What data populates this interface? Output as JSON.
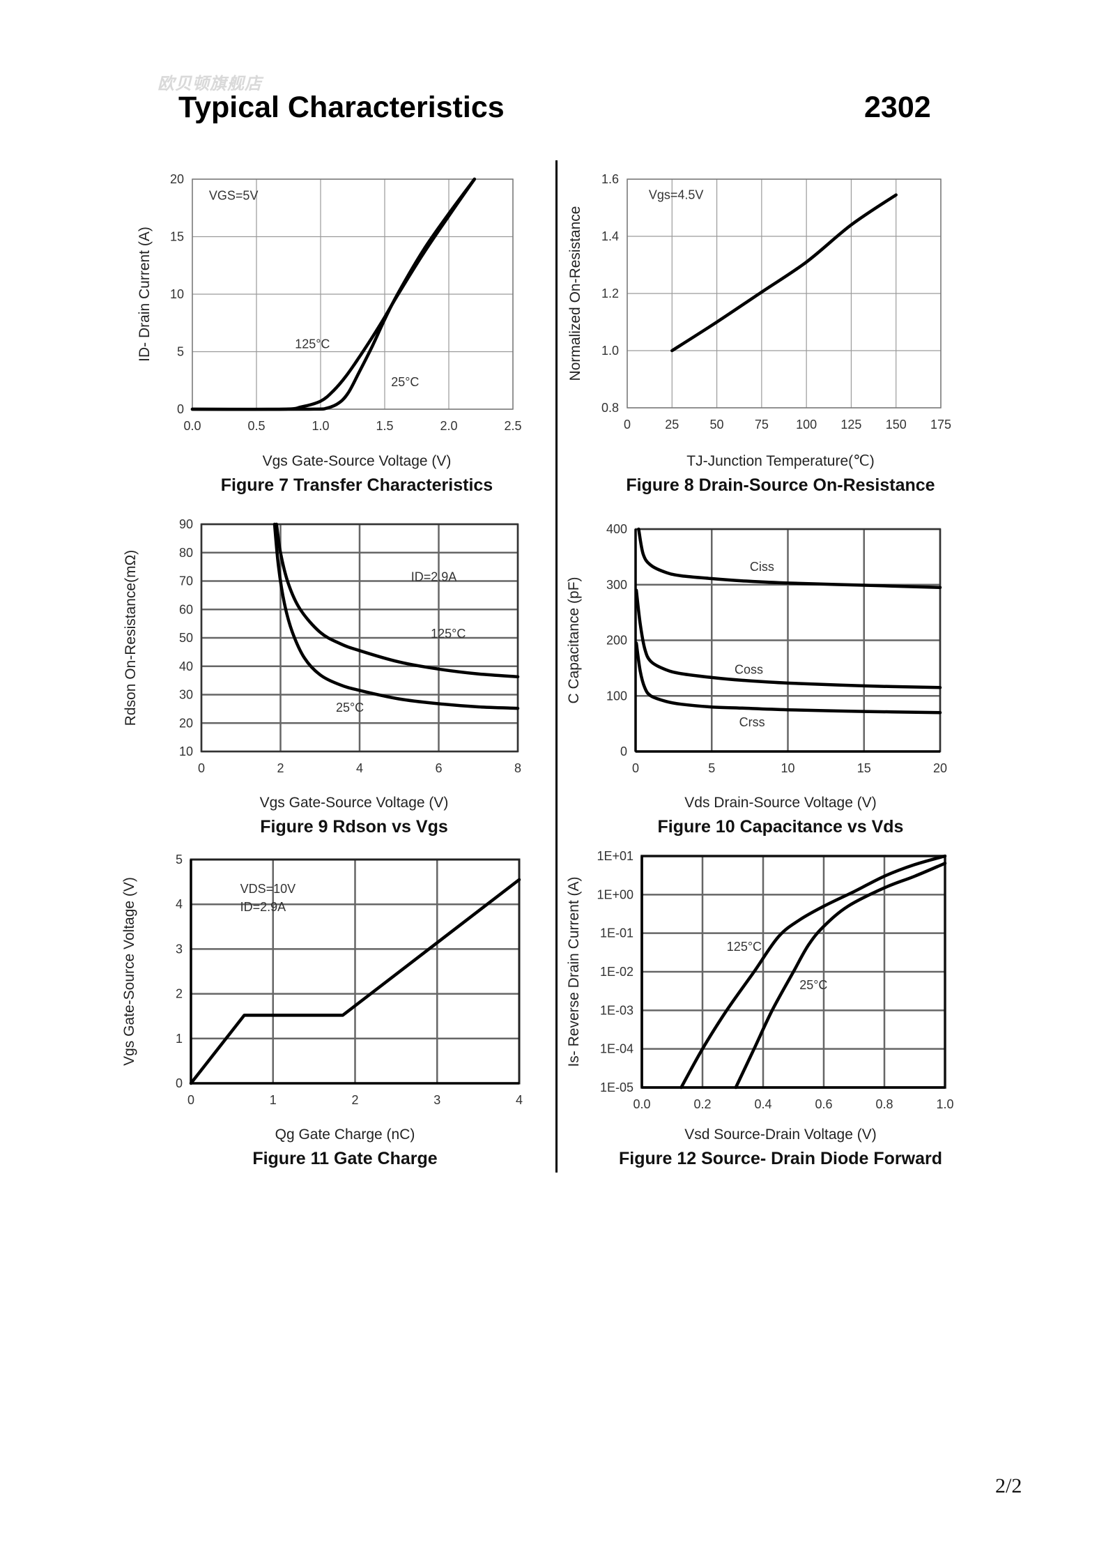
{
  "header": {
    "watermark": "欧贝顿旗舰店",
    "title": "Typical Characteristics",
    "part_number": "2302"
  },
  "footer": {
    "page_number": "2/2"
  },
  "chart_data": [
    {
      "id": "fig7",
      "type": "line",
      "title": "Figure 7 Transfer Characteristics",
      "xlabel": "Vgs Gate-Source Voltage (V)",
      "ylabel": "ID- Drain Current (A)",
      "xlim": [
        0,
        2.5
      ],
      "ylim": [
        0,
        20
      ],
      "xticks": [
        0,
        0.5,
        1.0,
        1.5,
        2.0,
        2.5
      ],
      "xtick_labels": [
        "0.0",
        "0.5",
        "1.0",
        "1.5",
        "2.0",
        "2.5"
      ],
      "yticks": [
        0,
        5,
        10,
        15,
        20
      ],
      "ytick_labels": [
        "0",
        "5",
        "10",
        "15",
        "20"
      ],
      "grid": true,
      "annotations": [
        {
          "text": "VGS=5V",
          "x": 0.13,
          "y": 18.2
        },
        {
          "text": "125°C",
          "x": 0.8,
          "y": 5.3
        },
        {
          "text": "25°C",
          "x": 1.55,
          "y": 2.0
        }
      ],
      "series": [
        {
          "name": "125°C",
          "x": [
            0,
            0.7,
            0.85,
            1.0,
            1.1,
            1.2,
            1.3,
            1.4,
            1.5,
            1.6,
            1.8,
            2.0,
            2.2
          ],
          "y": [
            0,
            0,
            0.2,
            0.7,
            1.6,
            2.9,
            4.5,
            6.2,
            8.0,
            9.9,
            13.5,
            16.8,
            20
          ]
        },
        {
          "name": "25°C",
          "x": [
            0,
            0.9,
            1.05,
            1.15,
            1.22,
            1.3,
            1.4,
            1.5,
            1.6,
            1.8,
            2.0,
            2.2
          ],
          "y": [
            0,
            0,
            0.1,
            0.6,
            1.5,
            3.2,
            5.4,
            7.8,
            10.0,
            13.8,
            17.0,
            20
          ]
        }
      ]
    },
    {
      "id": "fig8",
      "type": "line",
      "title": "Figure 8 Drain-Source On-Resistance",
      "xlabel": "TJ-Junction Temperature(℃)",
      "ylabel": "Normalized On-Resistance",
      "xlim": [
        0,
        175
      ],
      "ylim": [
        0.8,
        1.6
      ],
      "xticks": [
        0,
        25,
        50,
        75,
        100,
        125,
        150,
        175
      ],
      "xtick_labels": [
        "0",
        "25",
        "50",
        "75",
        "100",
        "125",
        "150",
        "175"
      ],
      "yticks": [
        0.8,
        1.0,
        1.2,
        1.4,
        1.6
      ],
      "ytick_labels": [
        "0.8",
        "1.0",
        "1.2",
        "1.4",
        "1.6"
      ],
      "grid": true,
      "annotations": [
        {
          "text": "Vgs=4.5V",
          "x": 12,
          "y": 1.53
        }
      ],
      "series": [
        {
          "name": "Vgs=4.5V",
          "x": [
            25,
            50,
            75,
            100,
            125,
            150
          ],
          "y": [
            1.0,
            1.1,
            1.205,
            1.31,
            1.44,
            1.545
          ]
        }
      ]
    },
    {
      "id": "fig9",
      "type": "line",
      "title": "Figure 9 Rdson vs Vgs",
      "xlabel": "Vgs Gate-Source Voltage (V)",
      "ylabel": "Rdson On-Resistance(mΩ)",
      "xlim": [
        0,
        8
      ],
      "ylim": [
        10,
        90
      ],
      "xticks": [
        0,
        2,
        4,
        6,
        8
      ],
      "xtick_labels": [
        "0",
        "2",
        "4",
        "6",
        "8"
      ],
      "yticks": [
        10,
        20,
        30,
        40,
        50,
        60,
        70,
        80,
        90
      ],
      "ytick_labels": [
        "10",
        "20",
        "30",
        "40",
        "50",
        "60",
        "70",
        "80",
        "90"
      ],
      "grid": true,
      "annotations": [
        {
          "text": "ID=2.9A",
          "x": 5.3,
          "y": 70
        },
        {
          "text": "125°C",
          "x": 5.8,
          "y": 50
        },
        {
          "text": "25°C",
          "x": 3.4,
          "y": 24
        }
      ],
      "series": [
        {
          "name": "125°C",
          "x": [
            1.9,
            2.0,
            2.2,
            2.5,
            3.0,
            3.5,
            4.0,
            5.0,
            6.0,
            7.0,
            8.0
          ],
          "y": [
            90,
            80,
            69,
            60,
            52,
            48,
            45.5,
            41.5,
            39,
            37.3,
            36.3
          ]
        },
        {
          "name": "25°C",
          "x": [
            1.85,
            1.95,
            2.1,
            2.3,
            2.6,
            3.0,
            3.5,
            4.0,
            5.0,
            6.0,
            7.0,
            8.0
          ],
          "y": [
            90,
            75,
            62,
            52,
            43,
            37,
            33.5,
            31.5,
            28.5,
            26.8,
            25.7,
            25.2
          ]
        }
      ]
    },
    {
      "id": "fig10",
      "type": "line",
      "title": "Figure 10 Capacitance vs Vds",
      "xlabel": "Vds Drain-Source Voltage (V)",
      "ylabel": "C Capacitance (pF)",
      "xlim": [
        0,
        20
      ],
      "ylim": [
        0,
        400
      ],
      "xticks": [
        0,
        5,
        10,
        15,
        20
      ],
      "xtick_labels": [
        "0",
        "5",
        "10",
        "15",
        "20"
      ],
      "yticks": [
        0,
        100,
        200,
        300,
        400
      ],
      "ytick_labels": [
        "0",
        "100",
        "200",
        "300",
        "400"
      ],
      "grid": true,
      "annotations": [
        {
          "text": "Ciss",
          "x": 7.5,
          "y": 325
        },
        {
          "text": "Coss",
          "x": 6.5,
          "y": 140
        },
        {
          "text": "Crss",
          "x": 6.8,
          "y": 45
        }
      ],
      "series": [
        {
          "name": "Ciss",
          "x": [
            0.2,
            0.5,
            1,
            2,
            3,
            5,
            7,
            10,
            15,
            20
          ],
          "y": [
            400,
            355,
            335,
            322,
            316,
            311,
            307,
            303,
            299,
            295
          ]
        },
        {
          "name": "Coss",
          "x": [
            0.05,
            0.3,
            0.6,
            1,
            2,
            3,
            5,
            7,
            10,
            15,
            20
          ],
          "y": [
            290,
            230,
            185,
            162,
            147,
            140,
            133,
            128,
            123,
            118,
            115
          ]
        },
        {
          "name": "Crss",
          "x": [
            0.05,
            0.3,
            0.6,
            1,
            2,
            3,
            5,
            7,
            10,
            15,
            20
          ],
          "y": [
            195,
            145,
            115,
            100,
            90,
            85,
            80,
            78,
            75,
            72,
            70
          ]
        }
      ]
    },
    {
      "id": "fig11",
      "type": "line",
      "title": "Figure 11 Gate Charge",
      "xlabel": "Qg Gate Charge (nC)",
      "ylabel": "Vgs Gate-Source Voltage (V)",
      "xlim": [
        0,
        4
      ],
      "ylim": [
        0,
        5
      ],
      "xticks": [
        0,
        1,
        2,
        3,
        4
      ],
      "xtick_labels": [
        "0",
        "1",
        "2",
        "3",
        "4"
      ],
      "yticks": [
        0,
        1,
        2,
        3,
        4,
        5
      ],
      "ytick_labels": [
        "0",
        "1",
        "2",
        "3",
        "4",
        "5"
      ],
      "grid": true,
      "annotations": [
        {
          "text": "VDS=10V",
          "x": 0.6,
          "y": 4.25
        },
        {
          "text": "ID=2.9A",
          "x": 0.6,
          "y": 3.85
        }
      ],
      "series": [
        {
          "name": "Vgs",
          "x": [
            0,
            0.65,
            1.85,
            4.0
          ],
          "y": [
            0,
            1.52,
            1.52,
            4.55
          ]
        }
      ]
    },
    {
      "id": "fig12",
      "type": "line",
      "y_scale": "log",
      "title": "Figure 12 Source- Drain Diode Forward",
      "xlabel": "Vsd Source-Drain Voltage (V)",
      "ylabel": "Is- Reverse Drain Current (A)",
      "xlim": [
        0,
        1.0
      ],
      "ylim": [
        1e-05,
        10
      ],
      "xticks": [
        0,
        0.2,
        0.4,
        0.6,
        0.8,
        1.0
      ],
      "xtick_labels": [
        "0.0",
        "0.2",
        "0.4",
        "0.6",
        "0.8",
        "1.0"
      ],
      "yticks": [
        1e-05,
        0.0001,
        0.001,
        0.01,
        0.1,
        1,
        10
      ],
      "ytick_labels": [
        "1E-05",
        "1E-04",
        "1E-03",
        "1E-02",
        "1E-01",
        "1E+00",
        "1E+01"
      ],
      "grid": true,
      "annotations": [
        {
          "text": "125°C",
          "x": 0.28,
          "y": 0.035
        },
        {
          "text": "25°C",
          "x": 0.52,
          "y": 0.0035
        }
      ],
      "series": [
        {
          "name": "125°C",
          "x": [
            0.13,
            0.2,
            0.28,
            0.37,
            0.45,
            0.52,
            0.6,
            0.7,
            0.8,
            0.9,
            1.0
          ],
          "y": [
            1e-05,
            0.0001,
            0.001,
            0.01,
            0.08,
            0.22,
            0.5,
            1.2,
            3.0,
            6.0,
            10
          ]
        },
        {
          "name": "25°C",
          "x": [
            0.31,
            0.37,
            0.43,
            0.5,
            0.55,
            0.6,
            0.68,
            0.8,
            0.9,
            1.0
          ],
          "y": [
            1e-05,
            0.0001,
            0.001,
            0.01,
            0.05,
            0.15,
            0.5,
            1.5,
            3.0,
            6.5
          ]
        }
      ]
    }
  ]
}
